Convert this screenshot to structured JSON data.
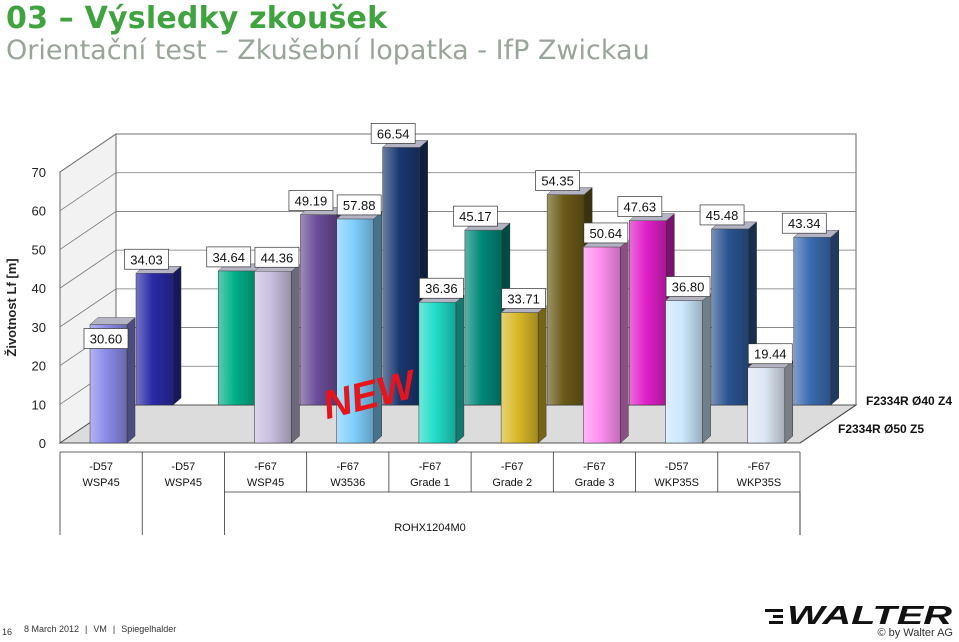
{
  "header": {
    "title": "03 – Výsledky zkoušek",
    "subtitle": "Orientační test – Zkušební lopatka - IfP Zwickau"
  },
  "chart_data": {
    "type": "bar",
    "ylabel": "Životnost Lf [m]",
    "ylim": [
      0,
      70
    ],
    "yticks": [
      0,
      10,
      20,
      30,
      40,
      50,
      60,
      70
    ],
    "grid": true,
    "categories": [
      [
        "-D57",
        "WSP45"
      ],
      [
        "-D57",
        "WSP45"
      ],
      [
        "-F67",
        "WSP45"
      ],
      [
        "-F67",
        "W3536"
      ],
      [
        "-F67",
        "Grade 1"
      ],
      [
        "-F67",
        "Grade 2"
      ],
      [
        "-F67",
        "Grade 3"
      ],
      [
        "-D57",
        "WKP35S"
      ],
      [
        "-F67",
        "WKP35S"
      ]
    ],
    "category_group_label": "ROHX1204M0",
    "series": [
      {
        "name": "F2334R Ø50 Z5",
        "values": [
          30.6,
          null,
          44.36,
          57.88,
          36.36,
          33.71,
          50.64,
          36.8,
          19.44
        ],
        "colors": [
          "#8a8ae8",
          null,
          "#c8bede",
          "#80d0ff",
          "#20dcc8",
          "#d8b828",
          "#ff90f0",
          "#cce8fc",
          "#dde6f4"
        ]
      },
      {
        "name": "F2334R Ø40 Z4",
        "values": [
          34.03,
          34.64,
          49.19,
          66.54,
          45.17,
          54.35,
          47.63,
          45.48,
          43.34
        ],
        "colors": [
          "#2a2aa8",
          "#00b088",
          "#6a4c98",
          "#1a3870",
          "#008878",
          "#6a5a18",
          "#e020c8",
          "#2a5490",
          "#3a6ab0"
        ]
      }
    ],
    "annotation": "NEW"
  },
  "footer": {
    "page_number": "16",
    "date": "8 March 2012",
    "author_short": "VM",
    "author": "Spiegelhalder",
    "separator": "|",
    "brand": "WALTER",
    "copyright": "© by Walter AG"
  },
  "colors": {
    "title": "#3fa33f",
    "subtitle": "#9aa59a",
    "new_badge": "#e8141c"
  }
}
